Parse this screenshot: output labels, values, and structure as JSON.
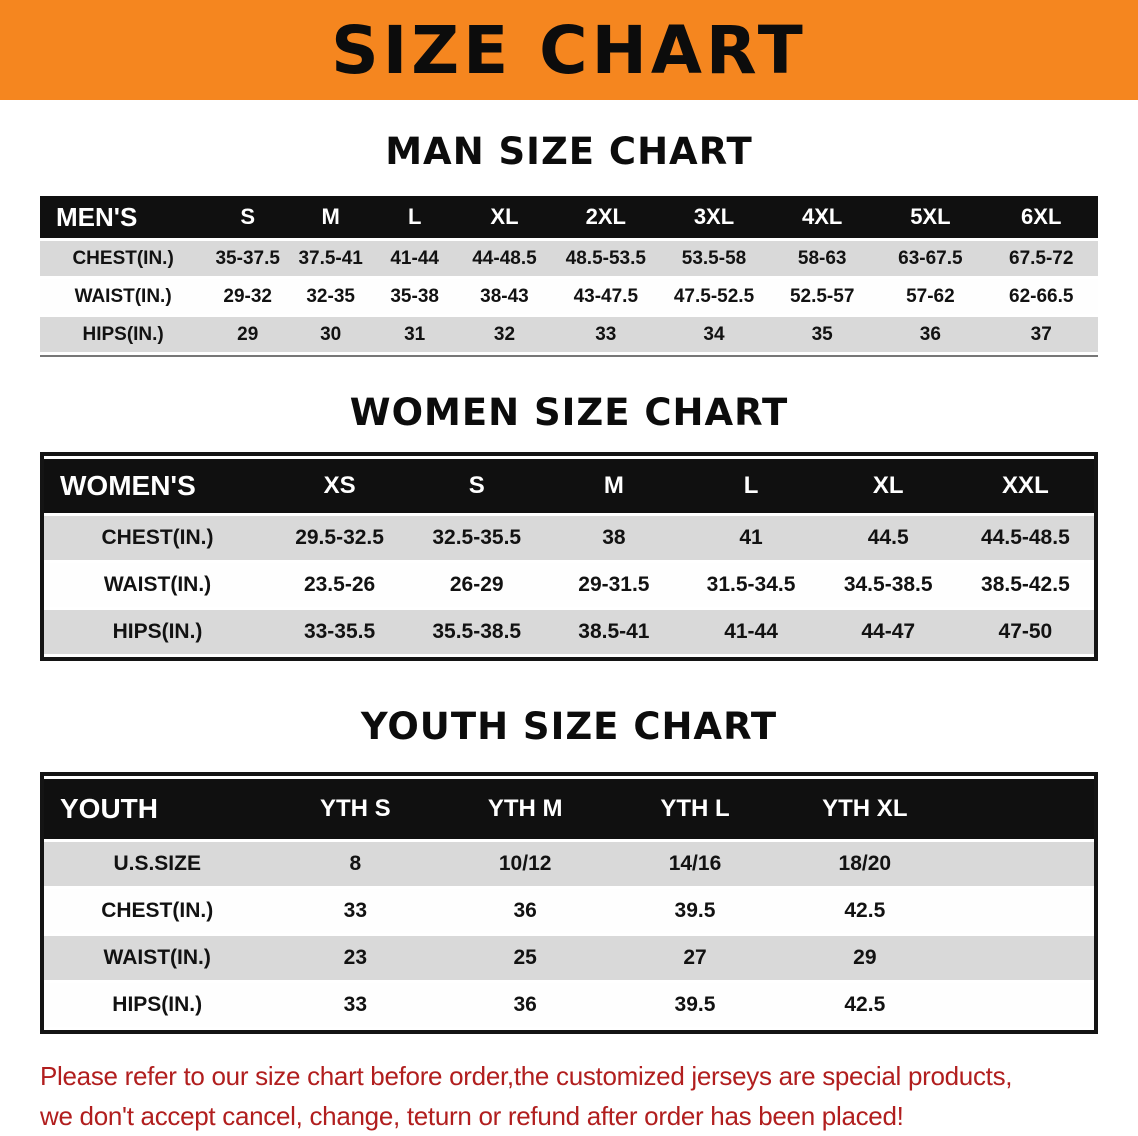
{
  "banner": {
    "title": "SIZE CHART",
    "bg_color": "#F5861F"
  },
  "colors": {
    "table_header_bg": "#101010",
    "row_alt_gray": "#D9D9D9",
    "disclaimer_red": "#B11E1E"
  },
  "sections": [
    {
      "heading": "MAN SIZE CHART",
      "table": {
        "header": [
          "MEN'S",
          "S",
          "M",
          "L",
          "XL",
          "2XL",
          "3XL",
          "4XL",
          "5XL",
          "6XL"
        ],
        "rows": [
          [
            "CHEST(IN.)",
            "35-37.5",
            "37.5-41",
            "41-44",
            "44-48.5",
            "48.5-53.5",
            "53.5-58",
            "58-63",
            "63-67.5",
            "67.5-72"
          ],
          [
            "WAIST(IN.)",
            "29-32",
            "32-35",
            "35-38",
            "38-43",
            "43-47.5",
            "47.5-52.5",
            "52.5-57",
            "57-62",
            "62-66.5"
          ],
          [
            "HIPS(IN.)",
            "29",
            "30",
            "31",
            "32",
            "33",
            "34",
            "35",
            "36",
            "37"
          ]
        ]
      }
    },
    {
      "heading": "WOMEN SIZE CHART",
      "table": {
        "header": [
          "WOMEN'S",
          "XS",
          "S",
          "M",
          "L",
          "XL",
          "XXL"
        ],
        "rows": [
          [
            "CHEST(IN.)",
            "29.5-32.5",
            "32.5-35.5",
            "38",
            "41",
            "44.5",
            "44.5-48.5"
          ],
          [
            "WAIST(IN.)",
            "23.5-26",
            "26-29",
            "29-31.5",
            "31.5-34.5",
            "34.5-38.5",
            "38.5-42.5"
          ],
          [
            "HIPS(IN.)",
            "33-35.5",
            "35.5-38.5",
            "38.5-41",
            "41-44",
            "44-47",
            "47-50"
          ]
        ]
      }
    },
    {
      "heading": "YOUTH SIZE CHART",
      "table": {
        "header": [
          "YOUTH",
          "YTH S",
          "YTH M",
          "YTH L",
          "YTH XL"
        ],
        "rows": [
          [
            "U.S.SIZE",
            "8",
            "10/12",
            "14/16",
            "18/20"
          ],
          [
            "CHEST(IN.)",
            "33",
            "36",
            "39.5",
            "42.5"
          ],
          [
            "WAIST(IN.)",
            "23",
            "25",
            "27",
            "29"
          ],
          [
            "HIPS(IN.)",
            "33",
            "36",
            "39.5",
            "42.5"
          ]
        ]
      }
    }
  ],
  "disclaimer": {
    "line1": "Please refer to our size chart before order,the customized jerseys are special products,",
    "line2": "we don't accept cancel, change, teturn or refund after order has been placed!",
    "color": "#B11E1E"
  }
}
